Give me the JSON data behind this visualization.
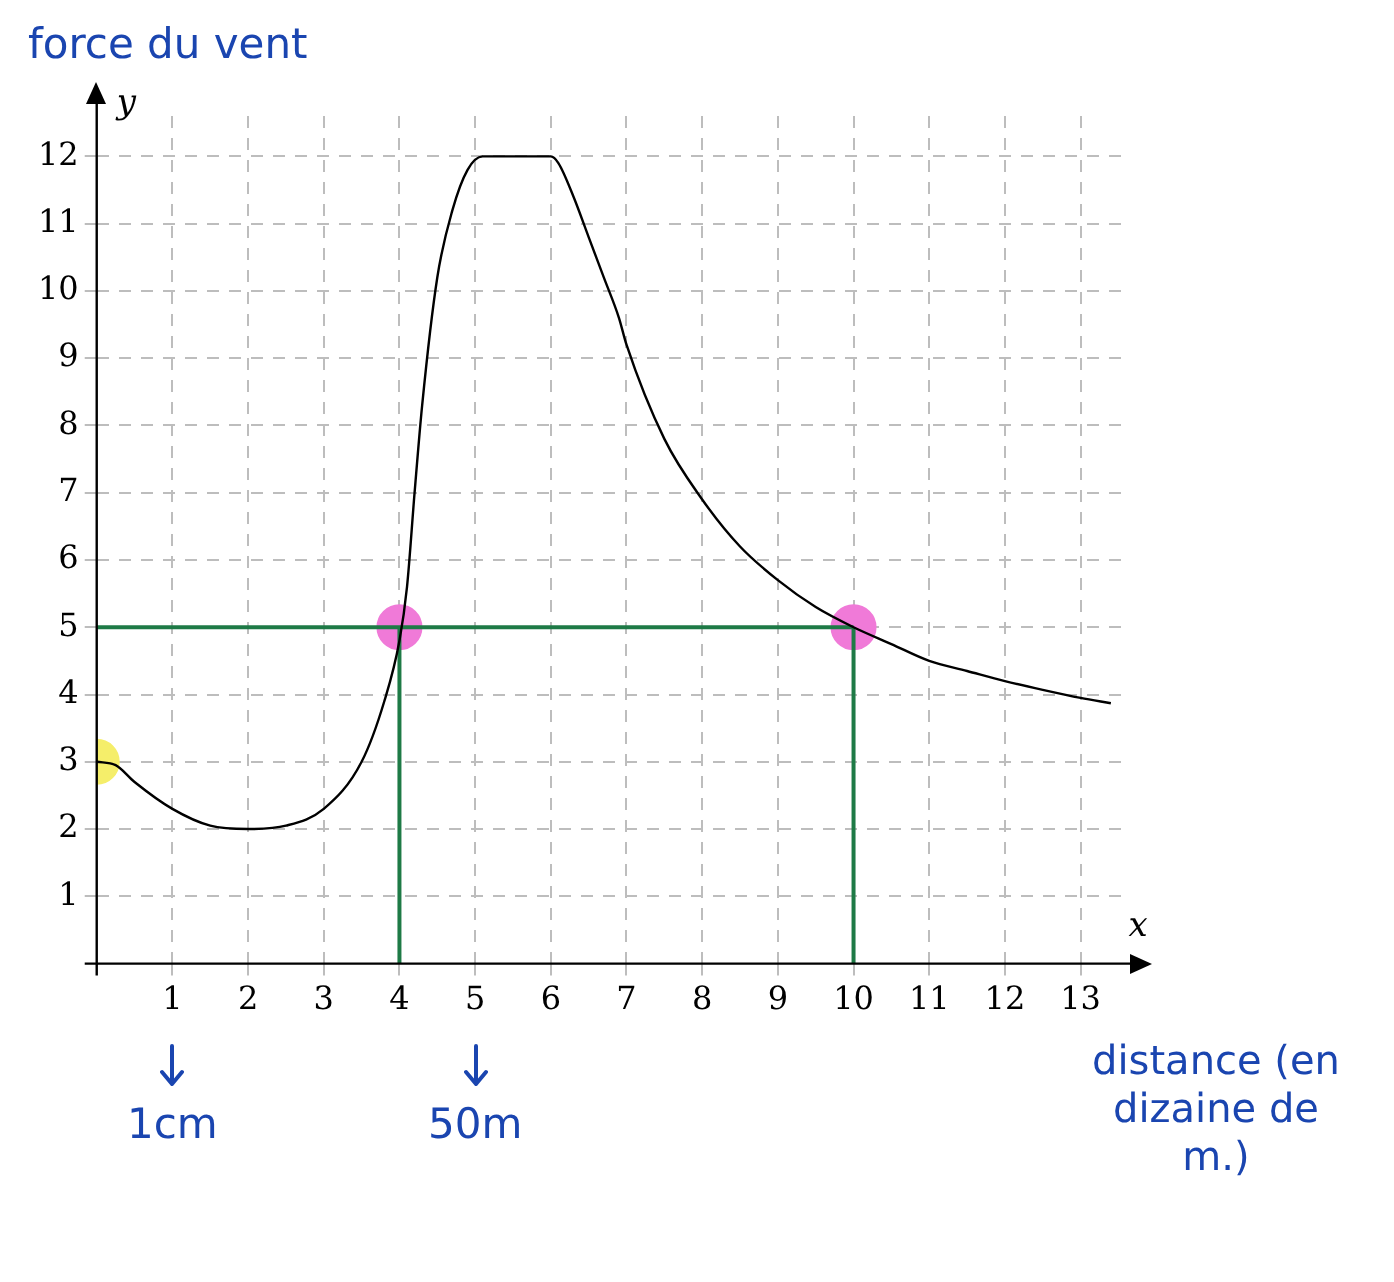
{
  "chart_data": {
    "type": "line",
    "xlabel": "x",
    "ylabel": "y",
    "xlim": [
      0,
      13.6
    ],
    "ylim": [
      0,
      12.6
    ],
    "xticks": [
      1,
      2,
      3,
      4,
      5,
      6,
      7,
      8,
      9,
      10,
      11,
      12,
      13
    ],
    "yticks": [
      1,
      2,
      3,
      4,
      5,
      6,
      7,
      8,
      9,
      10,
      11,
      12
    ],
    "grid": true,
    "legend": false,
    "series": [
      {
        "color": "#000000",
        "x": [
          0,
          0.25,
          0.5,
          1,
          1.5,
          2,
          2.5,
          3,
          3.5,
          3.8,
          4,
          4.1,
          4.2,
          4.3,
          4.5,
          4.7,
          4.9,
          5.1,
          5.5,
          6,
          6.1,
          6.3,
          6.5,
          6.7,
          6.9,
          7,
          7.5,
          8,
          8.5,
          9,
          9.5,
          10,
          10.5,
          11,
          11.5,
          12,
          12.5,
          13,
          13.4
        ],
        "values": [
          3,
          2.95,
          2.7,
          2.3,
          2.05,
          2,
          2.05,
          2.3,
          3,
          3.9,
          4.8,
          5.6,
          7,
          8.3,
          10.2,
          11.2,
          11.8,
          12,
          12,
          12,
          11.9,
          11.4,
          10.8,
          10.2,
          9.6,
          9.2,
          7.8,
          6.9,
          6.2,
          5.7,
          5.3,
          5,
          4.75,
          4.5,
          4.35,
          4.2,
          4.07,
          3.95,
          3.87
        ]
      },
      {
        "type": "line",
        "color": "#1e7a46",
        "x": [
          0,
          10
        ],
        "values": [
          5,
          5
        ]
      },
      {
        "type": "line",
        "color": "#1e7a46",
        "x": [
          4,
          4
        ],
        "values": [
          0,
          5
        ]
      },
      {
        "type": "line",
        "color": "#1e7a46",
        "x": [
          10,
          10
        ],
        "values": [
          0,
          5
        ]
      },
      {
        "type": "scatter",
        "marker": "circle",
        "colors": [
          "#f5ee6a",
          "#f07ad8",
          "#f07ad8"
        ],
        "x": [
          0,
          4,
          10
        ],
        "values": [
          3,
          5,
          5
        ]
      }
    ],
    "annotations": [
      "force du vent",
      "1cm",
      "50m",
      "distance (en dizaine de m.)"
    ]
  }
}
